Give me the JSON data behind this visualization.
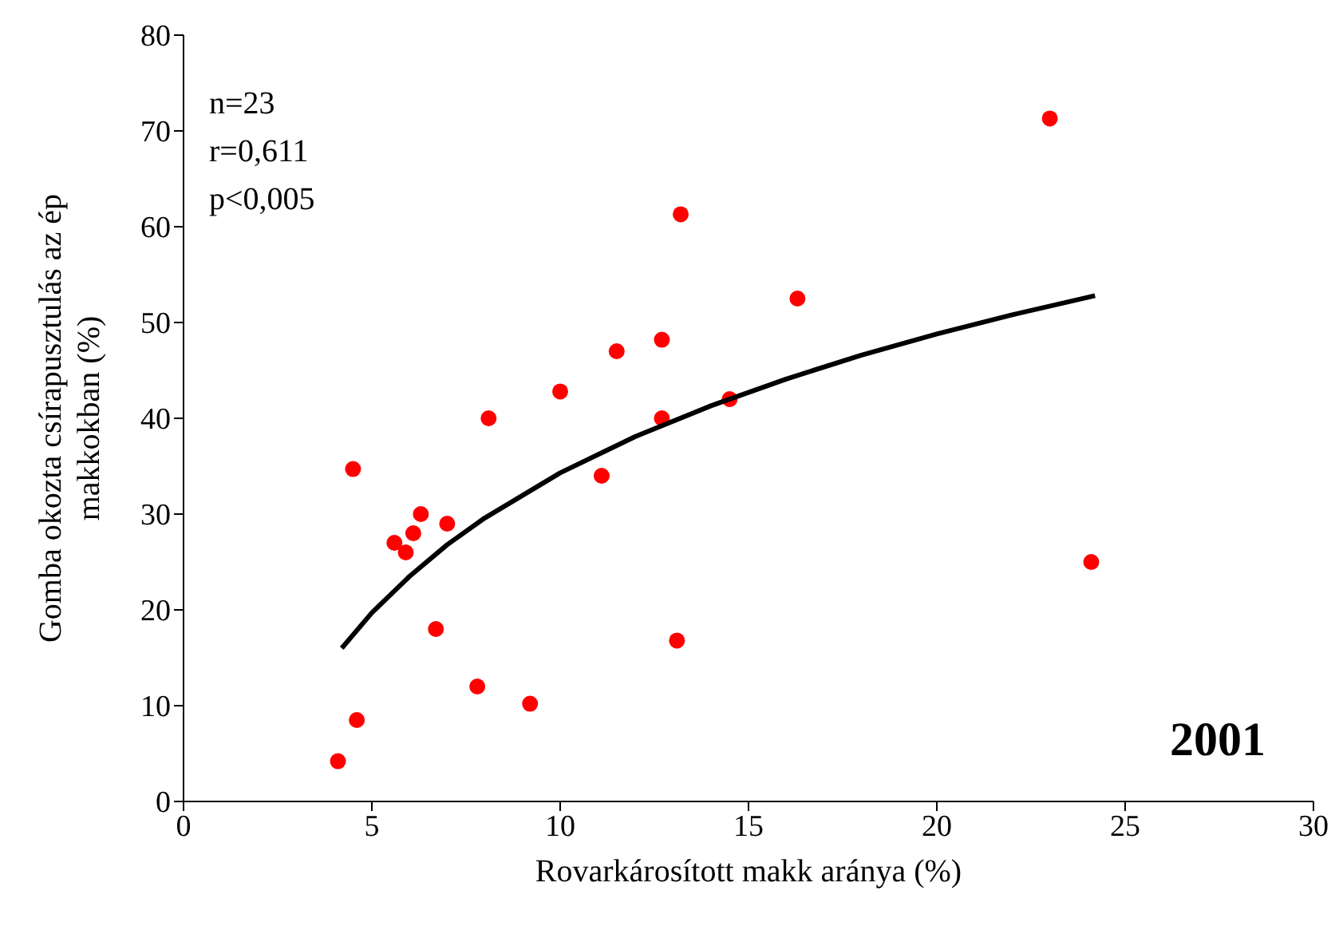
{
  "chart_data": {
    "type": "scatter",
    "xlabel": "Rovarkárosított makk aránya (%)",
    "ylabel": "Gomba okozta csírapusztulás az ép makkokban (%)",
    "xlim": [
      0,
      30
    ],
    "xticks": [
      0,
      5,
      10,
      15,
      20,
      25,
      30
    ],
    "ylim": [
      0,
      80
    ],
    "yticks": [
      0,
      10,
      20,
      30,
      40,
      50,
      60,
      70,
      80
    ],
    "grid": false,
    "series": [
      {
        "color": "#ff0000",
        "marker": "circle",
        "x": [
          4.1,
          4.5,
          4.6,
          5.6,
          5.9,
          6.1,
          6.3,
          7.0,
          6.7,
          7.8,
          8.1,
          9.2,
          10.0,
          11.1,
          11.5,
          12.7,
          12.7,
          13.1,
          13.2,
          14.5,
          16.3,
          23.0,
          24.1
        ],
        "values": [
          4.2,
          34.7,
          8.5,
          27,
          26,
          28,
          30,
          29,
          18,
          12,
          40,
          10.2,
          42.8,
          34,
          47,
          48.2,
          40,
          16.8,
          61.3,
          42,
          52.5,
          71.3,
          25
        ]
      },
      {
        "type": "line",
        "color": "#000000",
        "marker": "none",
        "line_style": "solid",
        "x": [
          4.2,
          5,
          6,
          7,
          8,
          10,
          12,
          14,
          16,
          18,
          20,
          22,
          24.2
        ],
        "values": [
          16,
          19.7,
          23.5,
          26.8,
          29.6,
          34.3,
          38.1,
          41.3,
          44.1,
          46.6,
          48.8,
          50.8,
          52.8
        ]
      }
    ],
    "annotations": [
      "n=23",
      "r=0,611",
      "p<0,005",
      "2001"
    ]
  }
}
